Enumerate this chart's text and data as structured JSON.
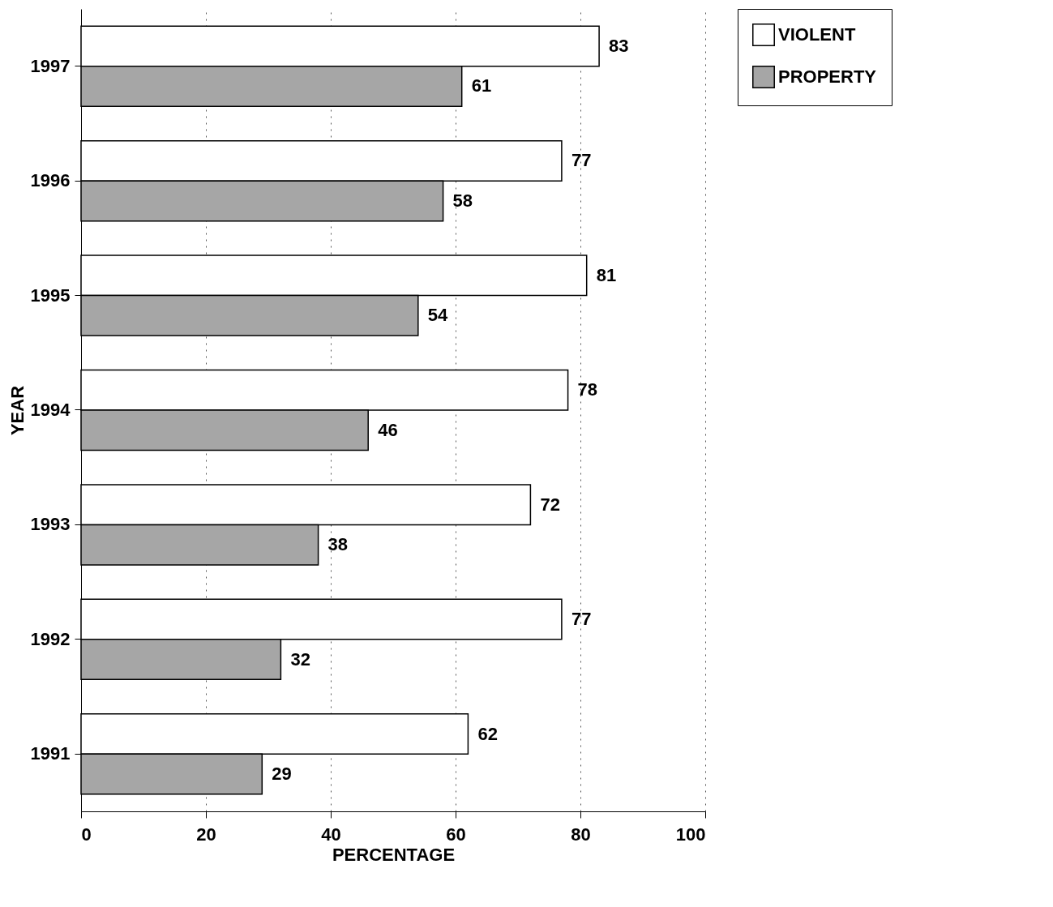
{
  "chart_data": {
    "type": "bar",
    "orientation": "horizontal",
    "xlabel": "PERCENTAGE",
    "ylabel": "YEAR",
    "categories": [
      "1997",
      "1996",
      "1995",
      "1994",
      "1993",
      "1992",
      "1991"
    ],
    "series": [
      {
        "name": "VIOLENT",
        "color": "#ffffff",
        "values": [
          83,
          77,
          81,
          78,
          72,
          77,
          62
        ]
      },
      {
        "name": "PROPERTY",
        "color": "#a6a6a6",
        "values": [
          61,
          58,
          54,
          46,
          38,
          32,
          29
        ]
      }
    ],
    "xlim": [
      0,
      100
    ],
    "xticks": [
      0,
      20,
      40,
      60,
      80,
      100
    ],
    "grid": "x",
    "legend": "right",
    "data_labels": true
  }
}
